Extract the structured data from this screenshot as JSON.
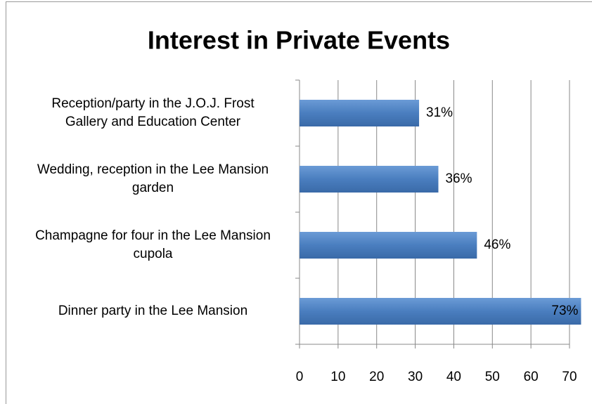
{
  "chart_data": {
    "type": "barh",
    "title": "Interest in Private Events",
    "categories": [
      "Reception/party in the J.O.J. Frost Gallery and Education Center",
      "Wedding, reception in the Lee Mansion garden",
      "Champagne for four in the Lee Mansion cupola",
      "Dinner party in the Lee Mansion"
    ],
    "values": [
      31,
      36,
      46,
      73
    ],
    "value_labels": [
      "31%",
      "36%",
      "46%",
      "73%"
    ],
    "color": "#4a7ebf",
    "xlim": [
      0,
      70
    ],
    "xticks": [
      0,
      10,
      20,
      30,
      40,
      50,
      60,
      70
    ],
    "grid": true
  }
}
